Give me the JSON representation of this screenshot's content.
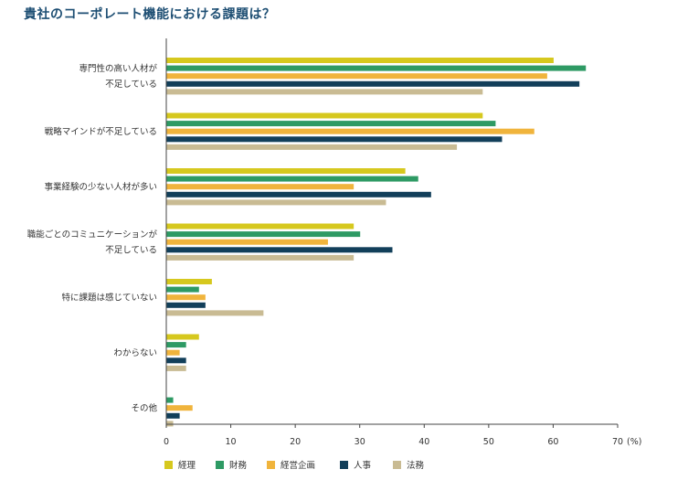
{
  "chart_data": {
    "type": "bar",
    "orientation": "horizontal",
    "title": "貴社のコーポレート機能における課題は？",
    "unit_label": "(%)",
    "xlim": [
      0,
      70
    ],
    "xticks": [
      0,
      10,
      20,
      30,
      40,
      50,
      60,
      70
    ],
    "categories": [
      [
        "専門性の高い人材が",
        "不足している"
      ],
      [
        "戦略マインドが不足している"
      ],
      [
        "事業経験の少ない人材が多い"
      ],
      [
        "職能ごとのコミュニケーションが",
        "不足している"
      ],
      [
        "特に課題は感じていない"
      ],
      [
        "わからない"
      ],
      [
        "その他"
      ]
    ],
    "series": [
      {
        "name": "経理",
        "color": "#d6c81e",
        "values": [
          60,
          49,
          37,
          29,
          7,
          5,
          0
        ]
      },
      {
        "name": "財務",
        "color": "#2e9a64",
        "values": [
          65,
          51,
          39,
          30,
          5,
          3,
          1
        ]
      },
      {
        "name": "経営企画",
        "color": "#f0b43c",
        "values": [
          59,
          57,
          29,
          25,
          6,
          2,
          4
        ]
      },
      {
        "name": "人事",
        "color": "#123f5a",
        "values": [
          64,
          52,
          41,
          35,
          6,
          3,
          2
        ]
      },
      {
        "name": "法務",
        "color": "#c9bb93",
        "values": [
          49,
          45,
          34,
          29,
          15,
          3,
          1
        ]
      }
    ]
  }
}
